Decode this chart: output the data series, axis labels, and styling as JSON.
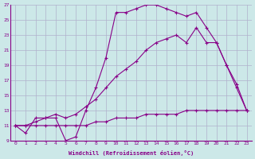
{
  "xlabel": "Windchill (Refroidissement éolien,°C)",
  "background_color": "#cce8e8",
  "grid_color": "#b0b0cc",
  "line_color": "#880088",
  "xmin": 0,
  "xmax": 23,
  "ymin": 9,
  "ymax": 27,
  "yticks": [
    9,
    11,
    13,
    15,
    17,
    19,
    21,
    23,
    25,
    27
  ],
  "xticks": [
    0,
    1,
    2,
    3,
    4,
    5,
    6,
    7,
    8,
    9,
    10,
    11,
    12,
    13,
    14,
    15,
    16,
    17,
    18,
    19,
    20,
    21,
    22,
    23
  ],
  "series": [
    {
      "x": [
        0,
        1,
        2,
        3,
        4,
        5,
        6,
        7,
        8,
        9,
        10,
        11,
        12,
        13,
        14,
        15,
        16,
        17,
        18,
        19,
        20,
        21,
        22,
        23
      ],
      "y": [
        11,
        10,
        12,
        12,
        12,
        9,
        9.5,
        13,
        16,
        20,
        26,
        26,
        26.5,
        27,
        27,
        26.5,
        26,
        25.5,
        26,
        24,
        22,
        19,
        16.5,
        13
      ]
    },
    {
      "x": [
        0,
        1,
        2,
        3,
        4,
        5,
        6,
        7,
        8,
        9,
        10,
        11,
        12,
        13,
        14,
        15,
        16,
        17,
        18,
        19,
        20,
        21,
        22,
        23
      ],
      "y": [
        11,
        11,
        11.5,
        12,
        12.5,
        12,
        12.5,
        13.5,
        14.5,
        16,
        17.5,
        18.5,
        19.5,
        21,
        22,
        22.5,
        23,
        22,
        24,
        22,
        22,
        19,
        16,
        13
      ]
    },
    {
      "x": [
        0,
        1,
        2,
        3,
        4,
        5,
        6,
        7,
        8,
        9,
        10,
        11,
        12,
        13,
        14,
        15,
        16,
        17,
        18,
        19,
        20,
        21,
        22,
        23
      ],
      "y": [
        11,
        11,
        11,
        11,
        11,
        11,
        11,
        11,
        11.5,
        11.5,
        12,
        12,
        12,
        12.5,
        12.5,
        12.5,
        12.5,
        13,
        13,
        13,
        13,
        13,
        13,
        13
      ]
    }
  ]
}
